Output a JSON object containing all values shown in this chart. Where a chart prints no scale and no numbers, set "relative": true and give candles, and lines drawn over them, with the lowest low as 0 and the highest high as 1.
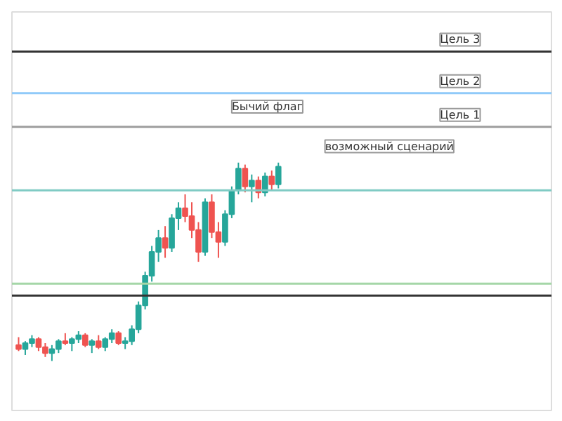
{
  "chart_data": {
    "type": "candlestick",
    "relative": true,
    "grid": false,
    "categories": [
      null,
      null,
      null,
      null,
      null,
      null,
      null,
      null,
      null,
      null,
      null,
      null,
      null,
      null,
      null,
      null,
      null,
      null,
      null,
      null,
      null,
      null,
      null,
      null,
      null,
      null,
      null,
      null,
      null,
      null,
      null,
      null,
      null,
      null,
      null,
      null,
      null,
      null,
      null,
      null
    ],
    "ohlc": [
      [
        0.08,
        0.12,
        0.05,
        0.06
      ],
      [
        0.06,
        0.1,
        0.03,
        0.09
      ],
      [
        0.09,
        0.13,
        0.07,
        0.11
      ],
      [
        0.11,
        0.12,
        0.05,
        0.07
      ],
      [
        0.07,
        0.09,
        0.02,
        0.04
      ],
      [
        0.04,
        0.08,
        0.0,
        0.06
      ],
      [
        0.06,
        0.11,
        0.04,
        0.1
      ],
      [
        0.1,
        0.14,
        0.08,
        0.09
      ],
      [
        0.09,
        0.12,
        0.05,
        0.11
      ],
      [
        0.11,
        0.15,
        0.09,
        0.13
      ],
      [
        0.13,
        0.14,
        0.07,
        0.08
      ],
      [
        0.08,
        0.11,
        0.04,
        0.1
      ],
      [
        0.1,
        0.13,
        0.06,
        0.07
      ],
      [
        0.07,
        0.12,
        0.05,
        0.11
      ],
      [
        0.11,
        0.16,
        0.09,
        0.14
      ],
      [
        0.14,
        0.15,
        0.08,
        0.09
      ],
      [
        0.09,
        0.12,
        0.06,
        0.1
      ],
      [
        0.1,
        0.18,
        0.08,
        0.16
      ],
      [
        0.16,
        0.3,
        0.14,
        0.28
      ],
      [
        0.28,
        0.45,
        0.26,
        0.43
      ],
      [
        0.43,
        0.58,
        0.4,
        0.55
      ],
      [
        0.55,
        0.66,
        0.5,
        0.62
      ],
      [
        0.62,
        0.68,
        0.52,
        0.57
      ],
      [
        0.57,
        0.74,
        0.55,
        0.72
      ],
      [
        0.72,
        0.8,
        0.66,
        0.77
      ],
      [
        0.77,
        0.84,
        0.7,
        0.73
      ],
      [
        0.73,
        0.8,
        0.62,
        0.66
      ],
      [
        0.66,
        0.7,
        0.5,
        0.55
      ],
      [
        0.55,
        0.82,
        0.53,
        0.8
      ],
      [
        0.8,
        0.84,
        0.62,
        0.65
      ],
      [
        0.65,
        0.7,
        0.52,
        0.6
      ],
      [
        0.6,
        0.76,
        0.58,
        0.74
      ],
      [
        0.74,
        0.88,
        0.72,
        0.86
      ],
      [
        0.86,
        1.0,
        0.84,
        0.97
      ],
      [
        0.97,
        0.99,
        0.85,
        0.88
      ],
      [
        0.88,
        0.94,
        0.8,
        0.91
      ],
      [
        0.91,
        0.93,
        0.82,
        0.85
      ],
      [
        0.85,
        0.95,
        0.83,
        0.93
      ],
      [
        0.93,
        0.96,
        0.86,
        0.89
      ],
      [
        0.89,
        1.0,
        0.87,
        0.98
      ]
    ],
    "colors": [
      "#ef5350",
      "#26a69a",
      "#26a69a",
      "#ef5350",
      "#ef5350",
      "#26a69a",
      "#26a69a",
      "#ef5350",
      "#26a69a",
      "#26a69a",
      "#ef5350",
      "#26a69a",
      "#ef5350",
      "#26a69a",
      "#26a69a",
      "#ef5350",
      "#26a69a",
      "#26a69a",
      "#26a69a",
      "#26a69a",
      "#26a69a",
      "#26a69a",
      "#ef5350",
      "#26a69a",
      "#26a69a",
      "#ef5350",
      "#ef5350",
      "#ef5350",
      "#26a69a",
      "#ef5350",
      "#ef5350",
      "#26a69a",
      "#26a69a",
      "#26a69a",
      "#ef5350",
      "#26a69a",
      "#ef5350",
      "#26a69a",
      "#ef5350",
      "#26a69a"
    ],
    "ref_lines": [
      {
        "axis": "y",
        "value": 1.56,
        "label": "Цель 3",
        "color": "#333333"
      },
      {
        "axis": "y",
        "value": 1.35,
        "label": "Цель 2",
        "color": "#90caf9"
      },
      {
        "axis": "y",
        "value": 1.18,
        "label": "Цель 1",
        "color": "#9e9e9e"
      },
      {
        "axis": "y",
        "value": 0.86,
        "label": null,
        "color": "#80cbc4"
      },
      {
        "axis": "y",
        "value": 0.39,
        "label": null,
        "color": "#a5d6a7"
      },
      {
        "axis": "y",
        "value": 0.33,
        "label": null,
        "color": "#333333"
      }
    ],
    "annotations": [
      "Бычий флаг",
      "возможный сценарий"
    ]
  }
}
